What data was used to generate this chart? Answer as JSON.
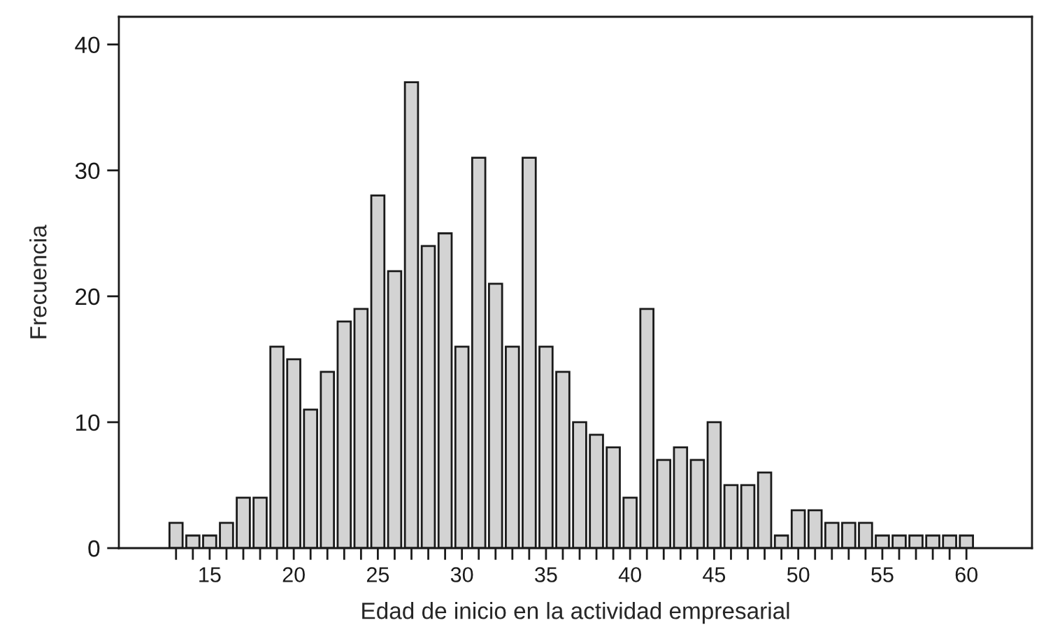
{
  "chart_data": {
    "type": "bar",
    "xlabel": "Edad de inicio en la actividad empresarial",
    "ylabel": "Frecuencia",
    "x": [
      13,
      14,
      15,
      16,
      17,
      18,
      19,
      20,
      21,
      22,
      23,
      24,
      25,
      26,
      27,
      28,
      29,
      30,
      31,
      32,
      33,
      34,
      35,
      36,
      37,
      38,
      39,
      40,
      41,
      42,
      43,
      44,
      45,
      46,
      47,
      48,
      49,
      50,
      51,
      52,
      53,
      54,
      55,
      56,
      57,
      58,
      59,
      60
    ],
    "values": [
      2,
      1,
      1,
      2,
      4,
      4,
      16,
      15,
      11,
      14,
      18,
      19,
      28,
      22,
      37,
      24,
      25,
      16,
      31,
      21,
      16,
      31,
      16,
      14,
      10,
      9,
      8,
      4,
      19,
      7,
      8,
      7,
      10,
      5,
      5,
      6,
      1,
      3,
      3,
      2,
      2,
      2,
      1,
      1,
      1,
      1,
      1,
      1
    ],
    "color": "#d3d3d3",
    "xlim": [
      9.6,
      63.9
    ],
    "ylim": [
      0,
      42.2
    ],
    "xticks": [
      {
        "value": 13,
        "label": null
      },
      {
        "value": 14,
        "label": null
      },
      15,
      {
        "value": 16,
        "label": null
      },
      {
        "value": 17,
        "label": null
      },
      {
        "value": 18,
        "label": null
      },
      {
        "value": 19,
        "label": null
      },
      20,
      {
        "value": 21,
        "label": null
      },
      {
        "value": 22,
        "label": null
      },
      {
        "value": 23,
        "label": null
      },
      {
        "value": 24,
        "label": null
      },
      25,
      {
        "value": 26,
        "label": null
      },
      {
        "value": 27,
        "label": null
      },
      {
        "value": 28,
        "label": null
      },
      {
        "value": 29,
        "label": null
      },
      30,
      {
        "value": 31,
        "label": null
      },
      {
        "value": 32,
        "label": null
      },
      {
        "value": 33,
        "label": null
      },
      {
        "value": 34,
        "label": null
      },
      35,
      {
        "value": 36,
        "label": null
      },
      {
        "value": 37,
        "label": null
      },
      {
        "value": 38,
        "label": null
      },
      {
        "value": 39,
        "label": null
      },
      40,
      {
        "value": 41,
        "label": null
      },
      {
        "value": 42,
        "label": null
      },
      {
        "value": 43,
        "label": null
      },
      {
        "value": 44,
        "label": null
      },
      45,
      {
        "value": 46,
        "label": null
      },
      {
        "value": 47,
        "label": null
      },
      {
        "value": 48,
        "label": null
      },
      {
        "value": 49,
        "label": null
      },
      50,
      {
        "value": 51,
        "label": null
      },
      {
        "value": 52,
        "label": null
      },
      {
        "value": 53,
        "label": null
      },
      {
        "value": 54,
        "label": null
      },
      55,
      {
        "value": 56,
        "label": null
      },
      {
        "value": 57,
        "label": null
      },
      {
        "value": 58,
        "label": null
      },
      {
        "value": 59,
        "label": null
      },
      60
    ],
    "yticks": [
      0,
      10,
      20,
      30,
      40
    ],
    "grid": false,
    "legend": false
  }
}
